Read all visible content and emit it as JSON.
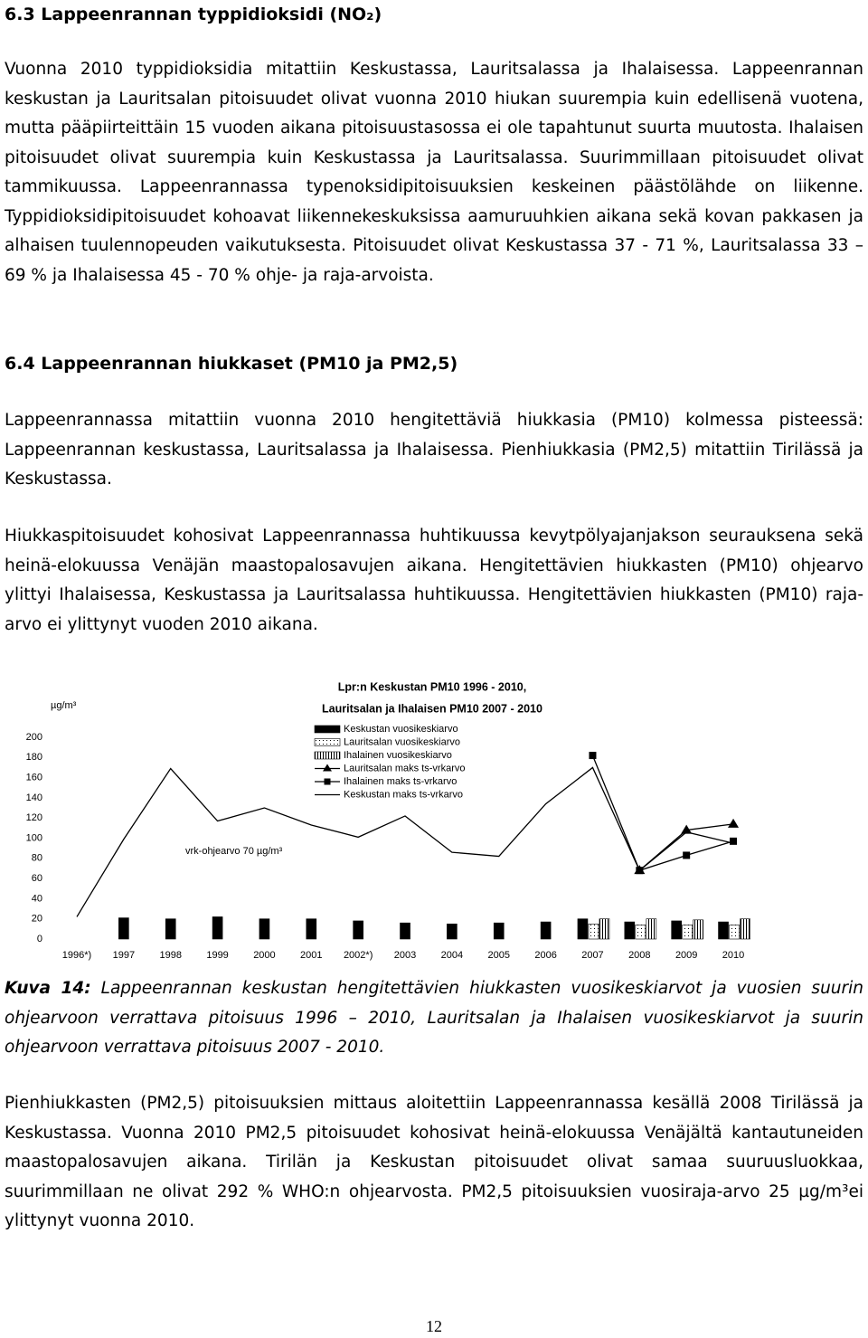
{
  "section_63": {
    "heading": "6.3 Lappeenrannan typpidioksidi (NO₂)",
    "paragraph": "Vuonna 2010 typpidioksidia mitattiin Keskustassa, Lauritsalassa ja Ihalaisessa. Lappeenrannan keskustan ja Lauritsalan pitoisuudet olivat vuonna 2010 hiukan suurempia kuin edellisenä vuotena, mutta pääpiirteittäin 15 vuoden aikana pitoisuustasossa ei ole tapahtunut suurta muutosta. Ihalaisen pitoisuudet olivat suurempia kuin Keskustassa ja Lauritsalassa. Suurimmillaan pitoisuudet olivat tammikuussa. Lappeenrannassa typenoksidipitoisuuksien keskeinen päästölähde on liikenne. Typpidioksidipitoisuudet kohoavat liikennekeskuksissa aamuruuhkien aikana sekä kovan pakkasen ja alhaisen tuulennopeuden vaikutuksesta. Pitoisuudet olivat Keskustassa 37 - 71 %, Lauritsalassa 33 – 69 % ja Ihalaisessa 45 - 70 % ohje- ja raja-arvoista."
  },
  "section_64": {
    "heading": "6.4 Lappeenrannan hiukkaset (PM10 ja PM2,5)",
    "paragraphs": [
      "Lappeenrannassa mitattiin vuonna 2010 hengitettäviä hiukkasia (PM10) kolmessa pisteessä: Lappeenrannan keskustassa, Lauritsalassa ja Ihalaisessa. Pienhiukkasia (PM2,5) mitattiin Tirilässä ja Keskustassa.",
      "Hiukkaspitoisuudet kohosivat Lappeenrannassa huhtikuussa kevytpölyajanjakson seurauksena sekä heinä-elokuussa Venäjän maastopalosavujen aikana. Hengitettävien hiukkasten (PM10) ohjearvo ylittyi Ihalaisessa, Keskustassa ja Lauritsalassa huhtikuussa. Hengitettävien hiukkasten (PM10) raja-arvo ei ylittynyt vuoden 2010 aikana."
    ]
  },
  "chart_data": {
    "type": "bar",
    "title_lines": [
      "Lpr:n Keskustan PM10 1996 - 2010,",
      "Lauritsalan ja Ihalaisen  PM10 2007 - 2010"
    ],
    "y_unit": "µg/m³",
    "annotation": "vrk-ohjearvo 70 µg/m³",
    "categories": [
      "1996*)",
      "1997",
      "1998",
      "1999",
      "2000",
      "2001",
      "2002*)",
      "2003",
      "2004",
      "2005",
      "2006",
      "2007",
      "2008",
      "2009",
      "2010"
    ],
    "ylim": [
      0,
      200
    ],
    "yticks": [
      0,
      20,
      40,
      60,
      80,
      100,
      120,
      140,
      160,
      180,
      200
    ],
    "series": [
      {
        "name": "Keskustan vuosikeskiarvo",
        "kind": "bar",
        "pattern": "solid",
        "color": "#000000",
        "values": [
          null,
          21,
          20,
          22,
          20,
          20,
          18,
          16,
          15,
          16,
          17,
          20,
          17,
          18,
          17
        ]
      },
      {
        "name": "Lauritsalan vuosikeskiarvo",
        "kind": "bar",
        "pattern": "dots",
        "color": "#000000",
        "values": [
          null,
          null,
          null,
          null,
          null,
          null,
          null,
          null,
          null,
          null,
          null,
          15,
          14,
          14,
          14
        ]
      },
      {
        "name": "Ihalainen vuosikeskiarvo",
        "kind": "bar",
        "pattern": "stripes",
        "color": "#000000",
        "values": [
          null,
          null,
          null,
          null,
          null,
          null,
          null,
          null,
          null,
          null,
          null,
          20,
          20,
          19,
          20
        ]
      },
      {
        "name": "Lauritsalan maks ts-vrkarvo",
        "kind": "line",
        "marker": "triangle",
        "color": "#000000",
        "values": [
          null,
          null,
          null,
          null,
          null,
          null,
          null,
          null,
          null,
          null,
          null,
          null,
          68,
          108,
          114
        ]
      },
      {
        "name": "Ihalainen maks ts-vrkarvo",
        "kind": "line",
        "marker": "square",
        "color": "#000000",
        "values": [
          null,
          null,
          null,
          null,
          null,
          null,
          null,
          null,
          null,
          null,
          null,
          182,
          68,
          83,
          97
        ]
      },
      {
        "name": "Keskustan maks ts-vrkarvo",
        "kind": "line",
        "marker": "none",
        "color": "#000000",
        "values": [
          22,
          99,
          169,
          117,
          130,
          113,
          101,
          122,
          86,
          82,
          134,
          170,
          68,
          106,
          95
        ]
      }
    ]
  },
  "caption": {
    "label": "Kuva 14:",
    "text": "Lappeenrannan keskustan hengitettävien hiukkasten vuosikeskiarvot ja vuosien suurin ohjearvoon verrattava pitoisuus 1996 – 2010, Lauritsalan ja Ihalaisen vuosikeskiarvot ja suurin ohjearvoon verrattava pitoisuus 2007 - 2010."
  },
  "pm25_paragraph": "Pienhiukkasten (PM2,5) pitoisuuksien mittaus aloitettiin Lappeenrannassa kesällä 2008 Tirilässä ja Keskustassa. Vuonna 2010 PM2,5 pitoisuudet kohosivat heinä-elokuussa Venäjältä kantautuneiden maastopalosavujen aikana. Tirilän ja Keskustan pitoisuudet olivat samaa suuruusluokkaa, suurimmillaan ne olivat 292 % WHO:n ohjearvosta.  PM2,5 pitoisuuksien vuosiraja-arvo 25 µg/m³ei ylittynyt vuonna 2010.",
  "page_number": "12"
}
